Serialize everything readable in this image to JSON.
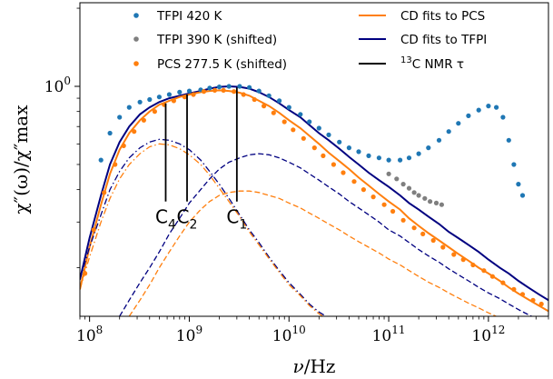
{
  "chart_data": {
    "type": "scatter",
    "xscale": "log",
    "yscale": "log",
    "xlim": [
      80000000.0,
      4000000000000.0
    ],
    "ylim": [
      0.13,
      2.1
    ],
    "xlabel_var": "ν",
    "xlabel_unit": "/Hz",
    "ylabel": "χ″(ω)/χ″max",
    "x_ticks": [
      100000000.0,
      1000000000.0,
      10000000000.0,
      100000000000.0,
      1000000000000.0
    ],
    "x_tick_labels": [
      {
        "base": "10",
        "exp": "8"
      },
      {
        "base": "10",
        "exp": "9"
      },
      {
        "base": "10",
        "exp": "10"
      },
      {
        "base": "10",
        "exp": "11"
      },
      {
        "base": "10",
        "exp": "12"
      }
    ],
    "y_ticks": [
      1.0
    ],
    "y_tick_labels": [
      {
        "base": "10",
        "exp": "0"
      }
    ],
    "colors": {
      "tfpi420": "#1f77b4",
      "tfpi390": "#7f7f7f",
      "pcs": "#ff7f0e",
      "cd_pcs": "#ff7f0e",
      "cd_tfpi": "#000080",
      "nmr": "#000000"
    },
    "legend": {
      "placement": "top",
      "left_column": [
        {
          "key": "tfpi420",
          "label": "TFPI 420 K",
          "marker": "dot"
        },
        {
          "key": "tfpi390",
          "label": "TFPI 390 K (shifted)",
          "marker": "dot"
        },
        {
          "key": "pcs",
          "label": "PCS 277.5 K (shifted)",
          "marker": "dot"
        }
      ],
      "right_column": [
        {
          "key": "cd_pcs",
          "label": "CD fits to PCS",
          "marker": "line"
        },
        {
          "key": "cd_tfpi",
          "label": "CD fits to TFPI",
          "marker": "line"
        },
        {
          "key": "nmr",
          "label_pre": "13",
          "label_post": "C NMR τ",
          "marker": "line"
        }
      ]
    },
    "scatter_series": [
      {
        "name": "TFPI 420 K",
        "color_key": "tfpi420",
        "x": [
          130000000.0,
          160000000.0,
          200000000.0,
          250000000.0,
          320000000.0,
          400000000.0,
          500000000.0,
          630000000.0,
          800000000.0,
          1000000000.0,
          1300000000.0,
          1600000000.0,
          2000000000.0,
          2500000000.0,
          3200000000.0,
          4000000000.0,
          5000000000.0,
          6300000000.0,
          8000000000.0,
          10000000000.0,
          13000000000.0,
          16000000000.0,
          20000000000.0,
          25000000000.0,
          32000000000.0,
          40000000000.0,
          50000000000.0,
          63000000000.0,
          80000000000.0,
          100000000000.0,
          130000000000.0,
          160000000000.0,
          200000000000.0,
          250000000000.0,
          320000000000.0,
          400000000000.0,
          500000000000.0,
          630000000000.0,
          800000000000.0,
          1000000000000.0,
          1200000000000.0,
          1400000000000.0,
          1600000000000.0,
          1800000000000.0,
          2000000000000.0,
          2200000000000.0
        ],
        "y": [
          0.52,
          0.66,
          0.76,
          0.83,
          0.87,
          0.89,
          0.91,
          0.93,
          0.95,
          0.96,
          0.97,
          0.985,
          0.995,
          1.0,
          1.0,
          0.99,
          0.96,
          0.92,
          0.88,
          0.83,
          0.78,
          0.73,
          0.69,
          0.65,
          0.61,
          0.58,
          0.56,
          0.54,
          0.53,
          0.52,
          0.52,
          0.53,
          0.55,
          0.58,
          0.62,
          0.67,
          0.72,
          0.77,
          0.81,
          0.84,
          0.83,
          0.76,
          0.62,
          0.5,
          0.42,
          0.38
        ]
      },
      {
        "name": "TFPI 390 K (shifted)",
        "color_key": "tfpi390",
        "x": [
          100000000000.0,
          120000000000.0,
          140000000000.0,
          160000000000.0,
          180000000000.0,
          200000000000.0,
          230000000000.0,
          260000000000.0,
          300000000000.0,
          340000000000.0
        ],
        "y": [
          0.46,
          0.44,
          0.42,
          0.405,
          0.39,
          0.38,
          0.37,
          0.36,
          0.355,
          0.35
        ]
      },
      {
        "name": "PCS 277.5 K (shifted)",
        "color_key": "pcs",
        "x": [
          90000000.0,
          110000000.0,
          140000000.0,
          180000000.0,
          220000000.0,
          280000000.0,
          350000000.0,
          450000000.0,
          560000000.0,
          700000000.0,
          900000000.0,
          1100000000.0,
          1400000000.0,
          1800000000.0,
          2200000000.0,
          2800000000.0,
          3500000000.0,
          4500000000.0,
          5600000000.0,
          7000000000.0,
          9000000000.0,
          11000000000.0,
          14000000000.0,
          18000000000.0,
          22000000000.0,
          28000000000.0,
          35000000000.0,
          45000000000.0,
          56000000000.0,
          70000000000.0,
          90000000000.0,
          110000000000.0,
          140000000000.0,
          180000000000.0,
          220000000000.0,
          280000000000.0,
          350000000000.0,
          450000000000.0,
          560000000000.0,
          700000000000.0,
          900000000000.0,
          1100000000000.0,
          1400000000000.0,
          1800000000000.0,
          2200000000000.0,
          2800000000000.0,
          3400000000000.0
        ],
        "y": [
          0.19,
          0.28,
          0.39,
          0.5,
          0.59,
          0.67,
          0.74,
          0.8,
          0.85,
          0.88,
          0.91,
          0.93,
          0.955,
          0.965,
          0.965,
          0.955,
          0.93,
          0.89,
          0.84,
          0.79,
          0.73,
          0.68,
          0.63,
          0.58,
          0.54,
          0.5,
          0.465,
          0.43,
          0.4,
          0.375,
          0.35,
          0.33,
          0.305,
          0.285,
          0.27,
          0.255,
          0.24,
          0.225,
          0.215,
          0.205,
          0.195,
          0.185,
          0.175,
          0.165,
          0.158,
          0.15,
          0.145
        ]
      }
    ],
    "line_series": [
      {
        "name": "CD fits to TFPI",
        "color_key": "cd_tfpi",
        "style": "solid",
        "x": [
          80000000.0,
          100000000.0,
          130000000.0,
          160000000.0,
          200000000.0,
          250000000.0,
          320000000.0,
          400000000.0,
          500000000.0,
          630000000.0,
          800000000.0,
          1000000000.0,
          1300000000.0,
          1600000000.0,
          2000000000.0,
          2500000000.0,
          3200000000.0,
          4000000000.0,
          5000000000.0,
          6300000000.0,
          8000000000.0,
          10000000000.0,
          13000000000.0,
          16000000000.0,
          20000000000.0,
          25000000000.0,
          32000000000.0,
          40000000000.0,
          50000000000.0,
          63000000000.0,
          80000000000.0,
          100000000000.0,
          130000000000.0,
          160000000000.0,
          200000000000.0,
          250000000000.0,
          320000000000.0,
          400000000000.0,
          500000000000.0,
          630000000000.0,
          800000000000.0,
          1000000000000.0,
          1300000000000.0,
          1600000000000.0,
          2000000000000.0,
          2500000000000.0,
          3200000000000.0,
          4000000000000.0
        ],
        "y": [
          0.18,
          0.26,
          0.38,
          0.5,
          0.61,
          0.7,
          0.78,
          0.83,
          0.87,
          0.9,
          0.92,
          0.94,
          0.96,
          0.98,
          0.995,
          1.0,
          0.995,
          0.98,
          0.95,
          0.91,
          0.86,
          0.81,
          0.76,
          0.71,
          0.66,
          0.62,
          0.575,
          0.535,
          0.5,
          0.465,
          0.435,
          0.41,
          0.38,
          0.355,
          0.335,
          0.315,
          0.295,
          0.275,
          0.26,
          0.245,
          0.23,
          0.215,
          0.2,
          0.19,
          0.178,
          0.168,
          0.158,
          0.15
        ]
      },
      {
        "name": "CD fits to PCS",
        "color_key": "cd_pcs",
        "style": "solid",
        "x": [
          80000000.0,
          100000000.0,
          130000000.0,
          160000000.0,
          200000000.0,
          250000000.0,
          320000000.0,
          400000000.0,
          500000000.0,
          630000000.0,
          800000000.0,
          1000000000.0,
          1300000000.0,
          1600000000.0,
          2000000000.0,
          2500000000.0,
          3200000000.0,
          4000000000.0,
          5000000000.0,
          6300000000.0,
          8000000000.0,
          10000000000.0,
          13000000000.0,
          16000000000.0,
          20000000000.0,
          25000000000.0,
          32000000000.0,
          40000000000.0,
          50000000000.0,
          63000000000.0,
          80000000000.0,
          100000000000.0,
          130000000000.0,
          160000000000.0,
          200000000000.0,
          250000000000.0,
          320000000000.0,
          400000000000.0,
          500000000000.0,
          630000000000.0,
          800000000000.0,
          1000000000000.0,
          1300000000000.0,
          1600000000000.0,
          2000000000000.0,
          2500000000000.0,
          3200000000000.0,
          4000000000000.0
        ],
        "y": [
          0.165,
          0.24,
          0.35,
          0.46,
          0.57,
          0.66,
          0.74,
          0.8,
          0.85,
          0.88,
          0.91,
          0.93,
          0.95,
          0.96,
          0.965,
          0.96,
          0.945,
          0.92,
          0.88,
          0.84,
          0.79,
          0.74,
          0.69,
          0.645,
          0.6,
          0.555,
          0.515,
          0.48,
          0.445,
          0.415,
          0.385,
          0.36,
          0.335,
          0.31,
          0.29,
          0.272,
          0.255,
          0.24,
          0.226,
          0.213,
          0.2,
          0.19,
          0.178,
          0.168,
          0.159,
          0.151,
          0.143,
          0.136
        ]
      },
      {
        "name": "CD component TFPI 1",
        "color_key": "cd_tfpi",
        "style": "dashdot",
        "x": [
          80000000.0,
          100000000.0,
          130000000.0,
          160000000.0,
          200000000.0,
          250000000.0,
          320000000.0,
          400000000.0,
          500000000.0,
          630000000.0,
          800000000.0,
          1000000000.0,
          1300000000.0,
          1600000000.0,
          2000000000.0,
          2500000000.0,
          3200000000.0,
          4000000000.0,
          5000000000.0,
          6300000000.0,
          8000000000.0,
          10000000000.0,
          13000000000.0,
          16000000000.0,
          20000000000.0,
          25000000000.0
        ],
        "y": [
          0.18,
          0.24,
          0.32,
          0.4,
          0.47,
          0.53,
          0.58,
          0.61,
          0.625,
          0.62,
          0.6,
          0.57,
          0.52,
          0.47,
          0.42,
          0.37,
          0.32,
          0.28,
          0.25,
          0.22,
          0.195,
          0.175,
          0.158,
          0.145,
          0.135,
          0.128
        ]
      },
      {
        "name": "CD component PCS 1",
        "color_key": "cd_pcs",
        "style": "dashdot",
        "x": [
          80000000.0,
          100000000.0,
          130000000.0,
          160000000.0,
          200000000.0,
          250000000.0,
          320000000.0,
          400000000.0,
          500000000.0,
          630000000.0,
          800000000.0,
          1000000000.0,
          1300000000.0,
          1600000000.0,
          2000000000.0,
          2500000000.0,
          3200000000.0,
          4000000000.0,
          5000000000.0,
          6300000000.0,
          8000000000.0,
          10000000000.0,
          13000000000.0,
          16000000000.0,
          20000000000.0,
          25000000000.0
        ],
        "y": [
          0.165,
          0.22,
          0.3,
          0.37,
          0.44,
          0.5,
          0.55,
          0.585,
          0.6,
          0.595,
          0.575,
          0.545,
          0.5,
          0.455,
          0.405,
          0.36,
          0.315,
          0.275,
          0.245,
          0.217,
          0.192,
          0.172,
          0.156,
          0.143,
          0.133,
          0.126
        ]
      },
      {
        "name": "CD component TFPI 2",
        "color_key": "cd_tfpi",
        "style": "dashed",
        "x": [
          200000000.0,
          250000000.0,
          320000000.0,
          400000000.0,
          500000000.0,
          630000000.0,
          800000000.0,
          1000000000.0,
          1300000000.0,
          1600000000.0,
          2000000000.0,
          2500000000.0,
          3200000000.0,
          4000000000.0,
          5000000000.0,
          6300000000.0,
          8000000000.0,
          10000000000.0,
          13000000000.0,
          16000000000.0,
          20000000000.0,
          25000000000.0,
          32000000000.0,
          40000000000.0,
          50000000000.0,
          63000000000.0,
          80000000000.0,
          100000000000.0,
          130000000000.0,
          160000000000.0,
          200000000000.0,
          250000000000.0,
          320000000000.0,
          400000000000.0,
          500000000000.0,
          630000000000.0,
          800000000000.0,
          1000000000000.0,
          1300000000000.0,
          1600000000000.0,
          2000000000000.0,
          2500000000000.0,
          3200000000000.0,
          4000000000000.0
        ],
        "y": [
          0.13,
          0.15,
          0.175,
          0.2,
          0.23,
          0.27,
          0.31,
          0.355,
          0.4,
          0.44,
          0.48,
          0.51,
          0.53,
          0.545,
          0.55,
          0.545,
          0.53,
          0.51,
          0.485,
          0.46,
          0.435,
          0.41,
          0.385,
          0.36,
          0.34,
          0.32,
          0.3,
          0.28,
          0.265,
          0.25,
          0.235,
          0.222,
          0.21,
          0.198,
          0.188,
          0.178,
          0.168,
          0.16,
          0.152,
          0.145,
          0.138,
          0.132,
          0.126,
          0.12
        ]
      },
      {
        "name": "CD component PCS 2",
        "color_key": "cd_pcs",
        "style": "dashed",
        "x": [
          250000000.0,
          320000000.0,
          400000000.0,
          500000000.0,
          630000000.0,
          800000000.0,
          1000000000.0,
          1300000000.0,
          1600000000.0,
          2000000000.0,
          2500000000.0,
          3200000000.0,
          4000000000.0,
          5000000000.0,
          6300000000.0,
          8000000000.0,
          10000000000.0,
          13000000000.0,
          16000000000.0,
          20000000000.0,
          25000000000.0,
          32000000000.0,
          40000000000.0,
          50000000000.0,
          63000000000.0,
          80000000000.0,
          100000000000.0,
          130000000000.0,
          160000000000.0,
          200000000000.0,
          250000000000.0,
          320000000000.0,
          400000000000.0,
          500000000000.0,
          630000000000.0,
          800000000000.0,
          1000000000000.0,
          1300000000000.0,
          1600000000000.0,
          2000000000000.0,
          2500000000000.0,
          3200000000000.0,
          4000000000000.0
        ],
        "y": [
          0.13,
          0.15,
          0.172,
          0.2,
          0.23,
          0.265,
          0.3,
          0.335,
          0.36,
          0.38,
          0.39,
          0.395,
          0.395,
          0.39,
          0.38,
          0.37,
          0.355,
          0.34,
          0.325,
          0.31,
          0.295,
          0.28,
          0.265,
          0.252,
          0.24,
          0.228,
          0.216,
          0.205,
          0.195,
          0.185,
          0.176,
          0.168,
          0.16,
          0.153,
          0.146,
          0.14,
          0.134,
          0.128,
          0.123,
          0.118,
          0.114,
          0.11,
          0.106
        ]
      }
    ],
    "annotations": [
      {
        "label": "C",
        "sub": "4",
        "x": 580000000.0,
        "y_top": 0.86,
        "y_bottom": 0.36
      },
      {
        "label": "C",
        "sub": "2",
        "x": 950000000.0,
        "y_top": 0.93,
        "y_bottom": 0.36
      },
      {
        "label": "C",
        "sub": "1",
        "x": 3000000000.0,
        "y_top": 0.99,
        "y_bottom": 0.36
      }
    ]
  }
}
